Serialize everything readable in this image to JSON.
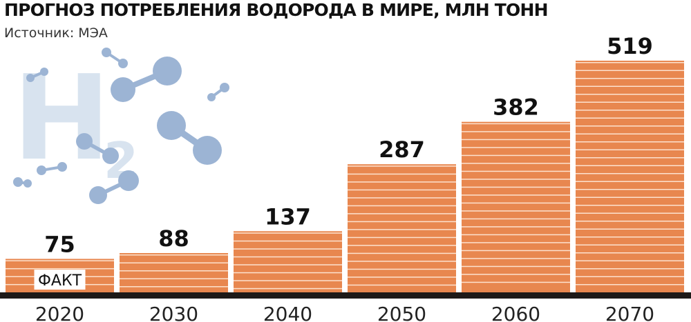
{
  "title": "ПРОГНОЗ ПОТРЕБЛЕНИЯ ВОДОРОДА В МИРЕ, МЛН ТОНН",
  "subtitle": "Источник: МЭА",
  "decoration": {
    "glyph": "H",
    "subscript": "2",
    "icon": "hydrogen-molecule-illustration"
  },
  "colors": {
    "bar": "#e8874f",
    "stripe": "#fde2cf",
    "base": "#1e1a18",
    "text": "#111111",
    "molecule": "#9cb4d4",
    "h2_letters": "#d8e3ef"
  },
  "chart_data": {
    "type": "bar",
    "categories": [
      "2020",
      "2030",
      "2040",
      "2050",
      "2060",
      "2070"
    ],
    "values": [
      75,
      88,
      137,
      287,
      382,
      519
    ],
    "data_labels": [
      "75",
      "88",
      "137",
      "287",
      "382",
      "519"
    ],
    "annotations": [
      {
        "category": "2020",
        "text": "ФАКТ"
      }
    ],
    "title": "ПРОГНОЗ ПОТРЕБЛЕНИЯ ВОДОРОДА В МИРЕ, МЛН ТОНН",
    "xlabel": "",
    "ylabel": "",
    "ylim": [
      0,
      519
    ],
    "grid": false,
    "legend": "none"
  }
}
